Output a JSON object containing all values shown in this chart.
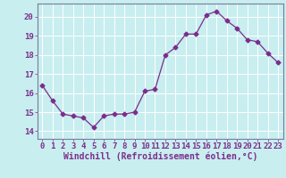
{
  "x": [
    0,
    1,
    2,
    3,
    4,
    5,
    6,
    7,
    8,
    9,
    10,
    11,
    12,
    13,
    14,
    15,
    16,
    17,
    18,
    19,
    20,
    21,
    22,
    23
  ],
  "y": [
    16.4,
    15.6,
    14.9,
    14.8,
    14.7,
    14.2,
    14.8,
    14.9,
    14.9,
    15.0,
    16.1,
    16.2,
    18.0,
    18.4,
    19.1,
    19.1,
    20.1,
    20.3,
    19.8,
    19.4,
    18.8,
    18.7,
    18.1,
    17.6
  ],
  "line_color": "#7b2d8b",
  "marker": "D",
  "marker_size": 2.5,
  "bg_color": "#c8eef0",
  "grid_color": "#b8dde0",
  "xlabel": "Windchill (Refroidissement éolien,°C)",
  "xlabel_fontsize": 7,
  "tick_color": "#7b2d8b",
  "tick_fontsize": 6.5,
  "yticks": [
    14,
    15,
    16,
    17,
    18,
    19,
    20
  ],
  "xticks": [
    0,
    1,
    2,
    3,
    4,
    5,
    6,
    7,
    8,
    9,
    10,
    11,
    12,
    13,
    14,
    15,
    16,
    17,
    18,
    19,
    20,
    21,
    22,
    23
  ],
  "ylim": [
    13.6,
    20.7
  ],
  "xlim": [
    -0.5,
    23.5
  ],
  "spine_color": "#7b7b9b"
}
